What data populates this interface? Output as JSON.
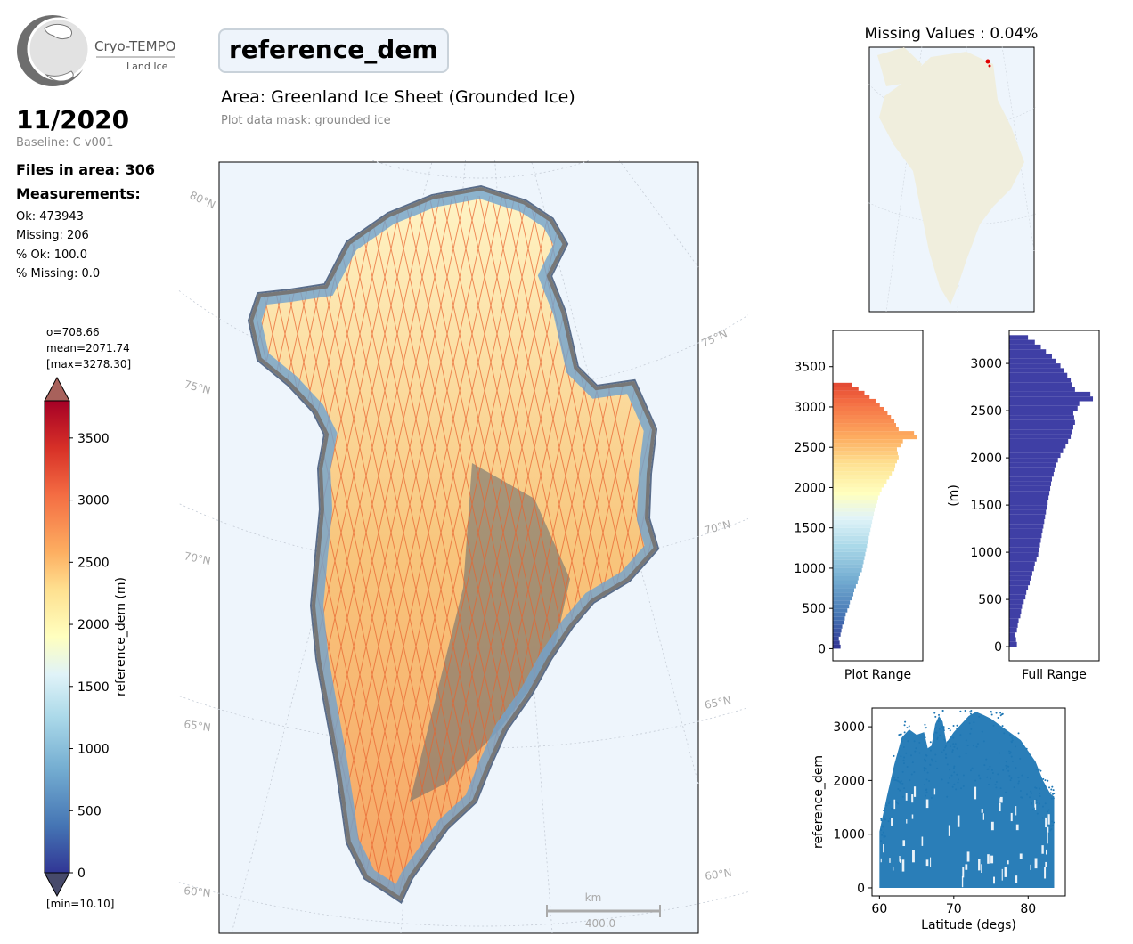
{
  "logo": {
    "name": "Cryo-TEMPO",
    "subtitle": "Land Ice"
  },
  "header": {
    "variable": "reference_dem",
    "area": "Area: Greenland Ice Sheet (Grounded Ice)",
    "mask": "Plot data mask: grounded ice"
  },
  "info": {
    "date": "11/2020",
    "baseline": "Baseline: C v001",
    "files": "Files in area: 306",
    "measurements_title": "Measurements:",
    "ok": "Ok: 473943",
    "missing": "Missing: 206",
    "pct_ok": "% Ok: 100.0",
    "pct_missing": "% Missing: 0.0"
  },
  "colorbar": {
    "sigma": "σ=708.66",
    "mean": "mean=2071.74",
    "max": "[max=3278.30]",
    "min": "[min=10.10]",
    "label": "reference_dem (m)",
    "ticks": [
      "0",
      "500",
      "1000",
      "1500",
      "2000",
      "2500",
      "3000",
      "3500"
    ],
    "range": [
      0,
      3800
    ]
  },
  "map": {
    "lat_labels": [
      "80°N",
      "75°N",
      "70°N",
      "65°N",
      "60°N"
    ],
    "lat_labels_right": [
      "75°N",
      "70°N",
      "65°N",
      "60°N"
    ],
    "scale_unit": "km",
    "scale_value": "400.0"
  },
  "inset": {
    "title": "Missing Values : 0.04%"
  },
  "colors": {
    "ocean": "#eef5fc",
    "land": "#f0eedd",
    "hist_full": "#3f3fa5",
    "scatter": "#1f77b4",
    "missing": "#e00000"
  },
  "chart_data": [
    {
      "type": "bar",
      "orientation": "horizontal",
      "xlabel": "Plot Range",
      "ylabel": "",
      "ylim": [
        -150,
        3950
      ],
      "yticks": [
        "0",
        "500",
        "1000",
        "1500",
        "2000",
        "2500",
        "3000",
        "3500"
      ],
      "bins": [
        0,
        50,
        100,
        150,
        200,
        250,
        300,
        350,
        400,
        450,
        500,
        550,
        600,
        650,
        700,
        750,
        800,
        850,
        900,
        950,
        1000,
        1050,
        1100,
        1150,
        1200,
        1250,
        1300,
        1350,
        1400,
        1450,
        1500,
        1550,
        1600,
        1650,
        1700,
        1750,
        1800,
        1850,
        1900,
        1950,
        2000,
        2050,
        2100,
        2150,
        2200,
        2250,
        2300,
        2350,
        2400,
        2450,
        2500,
        2550,
        2600,
        2650,
        2700,
        2750,
        2800,
        2850,
        2900,
        2950,
        3000,
        3050,
        3100,
        3150,
        3200,
        3250
      ],
      "values": [
        0.09,
        0.08,
        0.07,
        0.09,
        0.1,
        0.11,
        0.13,
        0.14,
        0.15,
        0.17,
        0.19,
        0.2,
        0.22,
        0.24,
        0.25,
        0.27,
        0.29,
        0.3,
        0.32,
        0.34,
        0.35,
        0.36,
        0.37,
        0.38,
        0.39,
        0.4,
        0.41,
        0.42,
        0.43,
        0.44,
        0.45,
        0.46,
        0.47,
        0.48,
        0.49,
        0.5,
        0.52,
        0.53,
        0.55,
        0.57,
        0.6,
        0.63,
        0.66,
        0.69,
        0.72,
        0.73,
        0.75,
        0.77,
        0.76,
        0.75,
        0.8,
        0.82,
        0.98,
        0.95,
        0.77,
        0.74,
        0.72,
        0.68,
        0.64,
        0.6,
        0.55,
        0.5,
        0.43,
        0.37,
        0.3,
        0.22
      ]
    },
    {
      "type": "bar",
      "orientation": "horizontal",
      "xlabel": "Full Range",
      "ylabel": "(m)",
      "ylim": [
        -150,
        3350
      ],
      "yticks": [
        "0",
        "500",
        "1000",
        "1500",
        "2000",
        "2500",
        "3000"
      ],
      "bins": [
        0,
        50,
        100,
        150,
        200,
        250,
        300,
        350,
        400,
        450,
        500,
        550,
        600,
        650,
        700,
        750,
        800,
        850,
        900,
        950,
        1000,
        1050,
        1100,
        1150,
        1200,
        1250,
        1300,
        1350,
        1400,
        1450,
        1500,
        1550,
        1600,
        1650,
        1700,
        1750,
        1800,
        1850,
        1900,
        1950,
        2000,
        2050,
        2100,
        2150,
        2200,
        2250,
        2300,
        2350,
        2400,
        2450,
        2500,
        2550,
        2600,
        2650,
        2700,
        2750,
        2800,
        2850,
        2900,
        2950,
        3000,
        3050,
        3100,
        3150,
        3200,
        3250
      ],
      "values": [
        0.09,
        0.08,
        0.07,
        0.09,
        0.1,
        0.11,
        0.13,
        0.14,
        0.15,
        0.17,
        0.19,
        0.2,
        0.22,
        0.24,
        0.25,
        0.27,
        0.29,
        0.3,
        0.32,
        0.34,
        0.35,
        0.36,
        0.37,
        0.38,
        0.39,
        0.4,
        0.41,
        0.42,
        0.43,
        0.44,
        0.45,
        0.46,
        0.47,
        0.48,
        0.49,
        0.5,
        0.52,
        0.53,
        0.55,
        0.57,
        0.6,
        0.63,
        0.66,
        0.69,
        0.72,
        0.73,
        0.75,
        0.77,
        0.76,
        0.75,
        0.8,
        0.82,
        0.98,
        0.95,
        0.77,
        0.74,
        0.72,
        0.68,
        0.64,
        0.6,
        0.55,
        0.5,
        0.43,
        0.37,
        0.3,
        0.22
      ]
    },
    {
      "type": "scatter",
      "xlabel": "Latitude (degs)",
      "ylabel": "reference_dem",
      "xlim": [
        59,
        85
      ],
      "ylim": [
        -150,
        3350
      ],
      "xticks": [
        "60",
        "70",
        "80"
      ],
      "yticks": [
        "0",
        "1000",
        "2000",
        "3000"
      ],
      "envelope": {
        "x": [
          60,
          61,
          62,
          63,
          64,
          65,
          66,
          66.5,
          67,
          67.5,
          68,
          68.5,
          69,
          70,
          71,
          72,
          73,
          74,
          75,
          76,
          77,
          78,
          79,
          80,
          81,
          82,
          83,
          83.5
        ],
        "y": [
          1050,
          1700,
          2300,
          2800,
          2950,
          2850,
          2900,
          2600,
          2650,
          3050,
          3200,
          3100,
          2700,
          2900,
          3050,
          3200,
          3280,
          3220,
          3150,
          3050,
          2950,
          2850,
          2750,
          2550,
          2350,
          2000,
          1750,
          1700
        ]
      }
    }
  ]
}
